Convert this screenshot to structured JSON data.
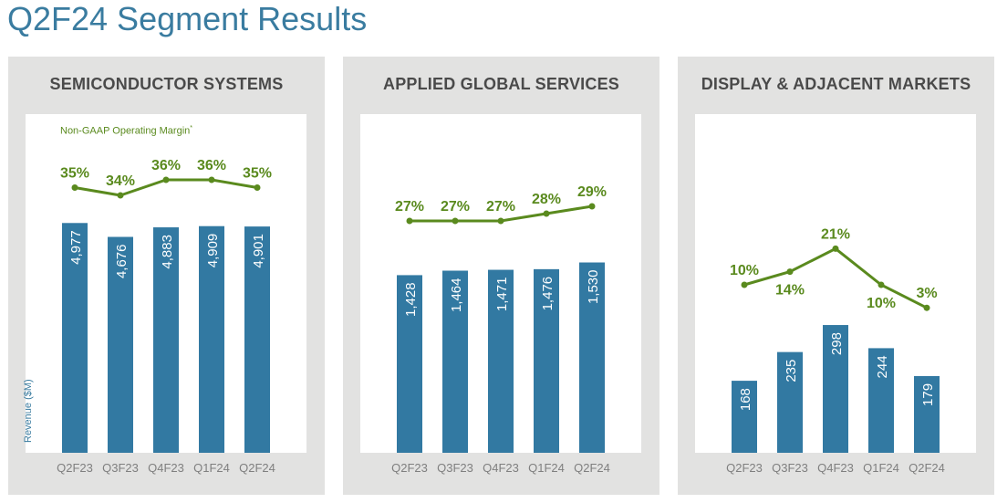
{
  "title": "Q2F24 Segment Results",
  "colors": {
    "bar": "#3279a2",
    "margin": "#5a8a1e",
    "panel": "#e2e2e1",
    "title": "#3a7ca0"
  },
  "chart_data": [
    {
      "type": "bar",
      "title": "SEMICONDUCTOR SYSTEMS",
      "categories": [
        "Q2F23",
        "Q3F23",
        "Q4F23",
        "Q1F24",
        "Q2F24"
      ],
      "series": [
        {
          "name": "Revenue ($M)",
          "values": [
            4977,
            4676,
            4883,
            4909,
            4901
          ],
          "labels": [
            "4,977",
            "4,676",
            "4,883",
            "4,909",
            "4,901"
          ]
        },
        {
          "name": "Non-GAAP Operating Margin",
          "type": "line",
          "values": [
            35,
            34,
            36,
            36,
            35
          ],
          "labels": [
            "35%",
            "34%",
            "36%",
            "36%",
            "35%"
          ]
        }
      ],
      "note": "Non-GAAP Operating Margin",
      "note_mark": "*",
      "ylabel": "Revenue ($M)",
      "ylim": [
        0,
        5200
      ]
    },
    {
      "type": "bar",
      "title": "APPLIED GLOBAL SERVICES",
      "categories": [
        "Q2F23",
        "Q3F23",
        "Q4F23",
        "Q1F24",
        "Q2F24"
      ],
      "series": [
        {
          "name": "Revenue ($M)",
          "values": [
            1428,
            1464,
            1471,
            1476,
            1530
          ],
          "labels": [
            "1,428",
            "1,464",
            "1,471",
            "1,476",
            "1,530"
          ]
        },
        {
          "name": "Non-GAAP Operating Margin",
          "type": "line",
          "values": [
            27,
            27,
            27,
            28,
            29
          ],
          "labels": [
            "27%",
            "27%",
            "27%",
            "28%",
            "29%"
          ]
        }
      ],
      "ylim": [
        0,
        1930
      ]
    },
    {
      "type": "bar",
      "title": "DISPLAY & ADJACENT MARKETS",
      "categories": [
        "Q2F23",
        "Q3F23",
        "Q4F23",
        "Q1F24",
        "Q2F24"
      ],
      "series": [
        {
          "name": "Revenue ($M)",
          "values": [
            168,
            235,
            298,
            244,
            179
          ],
          "labels": [
            "168",
            "235",
            "298",
            "244",
            "179"
          ]
        },
        {
          "name": "Non-GAAP Operating Margin",
          "type": "line",
          "values": [
            10,
            14,
            21,
            10,
            3
          ],
          "labels": [
            "10%",
            "14%",
            "21%",
            "10%",
            "3%"
          ]
        }
      ],
      "ylim": [
        0,
        560
      ]
    }
  ]
}
